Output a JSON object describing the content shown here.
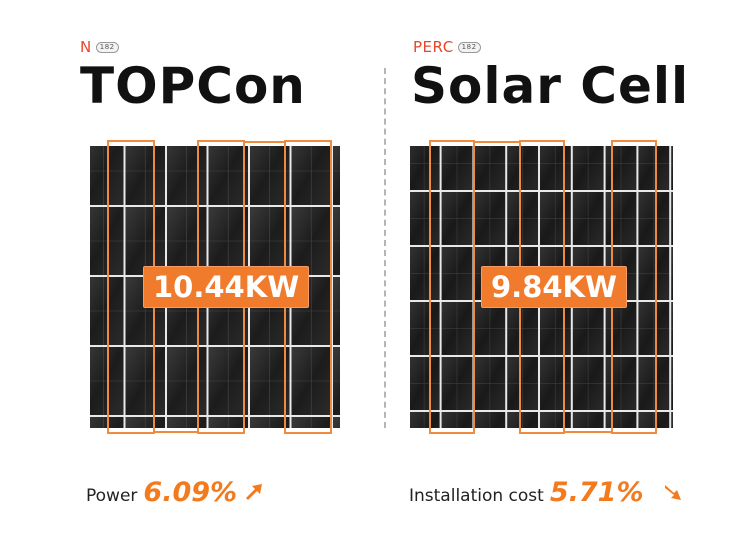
{
  "left": {
    "sub_label": "N",
    "chip": "182",
    "title": "TOPCon",
    "power_badge": "10.44KW",
    "metric_label": "Power",
    "metric_value": "6.09%",
    "arrow": "up-arrow-icon"
  },
  "right": {
    "sub_label": "PERC",
    "chip": "182",
    "title": "Solar Cell",
    "power_badge": "9.84KW",
    "metric_label": "Installation cost",
    "metric_value": "5.71%",
    "arrow": "down-arrow-icon"
  },
  "colors": {
    "accent": "#f07b2c",
    "sub_label": "#e8452c",
    "panel": "#1b1b1b",
    "outline": "#f08a3c"
  }
}
